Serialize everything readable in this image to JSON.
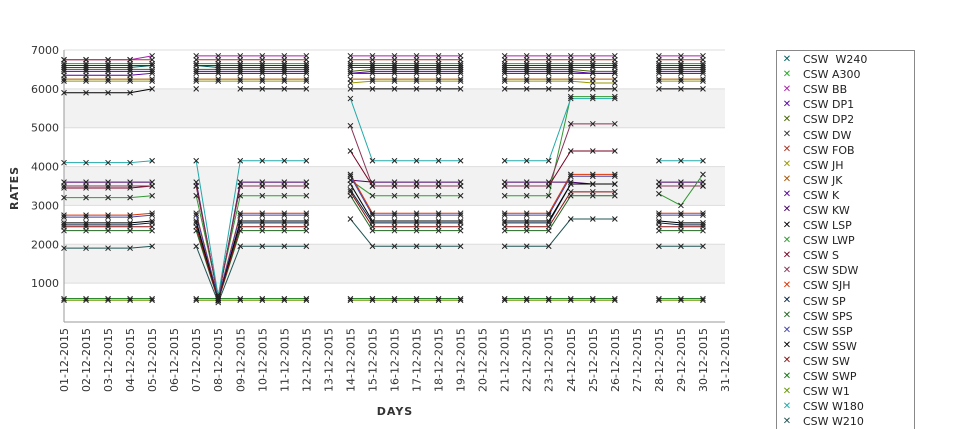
{
  "chart_data": {
    "type": "line",
    "xlabel": "DAYS",
    "ylabel": "RATES",
    "ylim": [
      0,
      7000
    ],
    "yticks": [
      1000,
      2000,
      3000,
      4000,
      5000,
      6000,
      7000
    ],
    "grid": true,
    "legend_position": "right",
    "x": [
      "01-12-2015",
      "02-12-2015",
      "03-12-2015",
      "04-12-2015",
      "05-12-2015",
      "06-12-2015",
      "07-12-2015",
      "08-12-2015",
      "09-12-2015",
      "10-12-2015",
      "11-12-2015",
      "12-12-2015",
      "13-12-2015",
      "14-12-2015",
      "15-12-2015",
      "16-12-2015",
      "17-12-2015",
      "18-12-2015",
      "19-12-2015",
      "20-12-2015",
      "21-12-2015",
      "22-12-2015",
      "23-12-2015",
      "24-12-2015",
      "25-12-2015",
      "26-12-2015",
      "27-12-2015",
      "28-12-2015",
      "29-12-2015",
      "30-12-2015",
      "31-12-2015"
    ],
    "series": [
      {
        "name": "CSW  W240",
        "color": "#006060",
        "values": [
          6550,
          6550,
          6550,
          6550,
          6600,
          null,
          6600,
          6550,
          6550,
          6550,
          6550,
          6550,
          null,
          6550,
          6550,
          6550,
          6550,
          6550,
          6550,
          null,
          6550,
          6550,
          6550,
          6550,
          6550,
          6550,
          null,
          6550,
          6550,
          6550,
          null
        ]
      },
      {
        "name": "CSW A300",
        "color": "#22aa22",
        "values": [
          6650,
          6650,
          6650,
          6650,
          6650,
          null,
          6650,
          6650,
          6650,
          6650,
          6650,
          6650,
          null,
          6650,
          6650,
          6650,
          6650,
          6650,
          6650,
          null,
          6650,
          6650,
          6650,
          6650,
          6650,
          6650,
          null,
          6650,
          6650,
          6650,
          null
        ]
      },
      {
        "name": "CSW BB",
        "color": "#aa22aa",
        "values": [
          6750,
          6750,
          6750,
          6750,
          6850,
          null,
          6850,
          6850,
          6850,
          6850,
          6850,
          6850,
          null,
          6850,
          6850,
          6850,
          6850,
          6850,
          6850,
          null,
          6850,
          6850,
          6850,
          6850,
          6850,
          6850,
          null,
          6850,
          6850,
          6850,
          null
        ]
      },
      {
        "name": "CSW DP1",
        "color": "#5500aa",
        "values": [
          6450,
          6450,
          6450,
          6450,
          6450,
          null,
          6450,
          6450,
          6450,
          6450,
          6450,
          6450,
          null,
          6400,
          6450,
          6450,
          6450,
          6450,
          6450,
          null,
          6450,
          6450,
          6450,
          6450,
          6400,
          6400,
          null,
          6450,
          6450,
          6450,
          null
        ]
      },
      {
        "name": "CSW DP2",
        "color": "#446600",
        "values": [
          6500,
          6500,
          6500,
          6500,
          6500,
          null,
          6500,
          6500,
          6500,
          6500,
          6500,
          6500,
          null,
          6450,
          6500,
          6500,
          6500,
          6500,
          6500,
          null,
          6500,
          6500,
          6500,
          6500,
          6450,
          6450,
          null,
          6500,
          6500,
          6500,
          null
        ]
      },
      {
        "name": "CSW DW",
        "color": "#333333",
        "values": [
          6600,
          6600,
          6600,
          6600,
          6600,
          null,
          6600,
          6600,
          6600,
          6600,
          6600,
          6600,
          null,
          6600,
          6600,
          6600,
          6600,
          6600,
          6600,
          null,
          6600,
          6600,
          6600,
          6600,
          6600,
          6600,
          null,
          6600,
          6600,
          6600,
          null
        ]
      },
      {
        "name": "CSW FOB",
        "color": "#aa3322",
        "values": [
          6750,
          6750,
          6750,
          6750,
          6750,
          null,
          6750,
          6750,
          6750,
          6750,
          6750,
          6750,
          null,
          6750,
          6750,
          6750,
          6750,
          6750,
          6750,
          null,
          6750,
          6750,
          6750,
          6750,
          6750,
          6750,
          null,
          6750,
          6750,
          6750,
          null
        ]
      },
      {
        "name": "CSW JH",
        "color": "#999900",
        "values": [
          6200,
          6200,
          6200,
          6200,
          6200,
          null,
          6200,
          6200,
          6200,
          6200,
          6200,
          6200,
          null,
          6150,
          6200,
          6200,
          6200,
          6200,
          6200,
          null,
          6200,
          6200,
          6200,
          6200,
          6150,
          6150,
          null,
          6200,
          6200,
          6200,
          null
        ]
      },
      {
        "name": "CSW JK",
        "color": "#aa5500",
        "values": [
          6250,
          6250,
          6250,
          6250,
          6250,
          null,
          6250,
          6250,
          6250,
          6250,
          6250,
          6250,
          null,
          6250,
          6250,
          6250,
          6250,
          6250,
          6250,
          null,
          6250,
          6250,
          6250,
          6250,
          6250,
          6250,
          null,
          6250,
          6250,
          6250,
          null
        ]
      },
      {
        "name": "CSW K",
        "color": "#550099",
        "values": [
          6350,
          6350,
          6350,
          6350,
          6400,
          null,
          6400,
          6400,
          6400,
          6400,
          6400,
          6400,
          null,
          6400,
          6400,
          6400,
          6400,
          6400,
          6400,
          null,
          6400,
          6400,
          6400,
          6400,
          6400,
          6400,
          null,
          6400,
          6400,
          6400,
          null
        ]
      },
      {
        "name": "CSW KW",
        "color": "#440066",
        "values": [
          3600,
          3600,
          3600,
          3600,
          3600,
          null,
          3600,
          600,
          3600,
          3600,
          3600,
          3600,
          null,
          3650,
          3600,
          3600,
          3600,
          3600,
          3600,
          null,
          3600,
          3600,
          3600,
          3600,
          3550,
          3550,
          null,
          3600,
          3600,
          3600,
          null
        ]
      },
      {
        "name": "CSW LSP",
        "color": "#000000",
        "values": [
          5900,
          5900,
          5900,
          5900,
          6000,
          null,
          6000,
          null,
          6000,
          6000,
          6000,
          6000,
          null,
          6000,
          6000,
          6000,
          6000,
          6000,
          6000,
          null,
          6000,
          6000,
          6000,
          6000,
          6000,
          6000,
          null,
          6000,
          6000,
          6000,
          null
        ]
      },
      {
        "name": "CSW LWP",
        "color": "#339933",
        "values": [
          3200,
          3200,
          3200,
          3200,
          3250,
          null,
          3250,
          700,
          3250,
          3250,
          3250,
          3250,
          null,
          3650,
          3250,
          3250,
          3250,
          3250,
          3250,
          null,
          3250,
          3250,
          3250,
          5800,
          5800,
          5800,
          null,
          3300,
          3000,
          3800,
          null
        ]
      },
      {
        "name": "CSW S",
        "color": "#770022",
        "values": [
          3450,
          3450,
          3450,
          3450,
          3500,
          null,
          3500,
          650,
          3500,
          3500,
          3500,
          3500,
          null,
          4400,
          3500,
          3500,
          3500,
          3500,
          3500,
          null,
          3500,
          3500,
          3500,
          4400,
          4400,
          4400,
          null,
          3500,
          3500,
          3500,
          null
        ]
      },
      {
        "name": "CSW SDW",
        "color": "#883355",
        "values": [
          3500,
          3500,
          3500,
          3500,
          3500,
          null,
          3500,
          650,
          3500,
          3500,
          3500,
          3500,
          null,
          5050,
          3500,
          3500,
          3500,
          3500,
          3500,
          null,
          3500,
          3500,
          3500,
          5100,
          5100,
          5100,
          null,
          3500,
          3500,
          3500,
          null
        ]
      },
      {
        "name": "CSW SJH",
        "color": "#dd3300",
        "values": [
          2750,
          2750,
          2750,
          2750,
          2800,
          null,
          2800,
          600,
          2800,
          2800,
          2800,
          2800,
          null,
          3800,
          2800,
          2800,
          2800,
          2800,
          2800,
          null,
          2800,
          2800,
          2800,
          3800,
          3800,
          3800,
          null,
          2800,
          2800,
          2800,
          null
        ]
      },
      {
        "name": "CSW SP",
        "color": "#002244",
        "values": [
          2500,
          2500,
          2500,
          2500,
          2550,
          null,
          2550,
          550,
          2550,
          2550,
          2550,
          2550,
          null,
          3400,
          2550,
          2550,
          2550,
          2550,
          2550,
          null,
          2550,
          2550,
          2550,
          3550,
          3550,
          3550,
          null,
          2550,
          2500,
          2500,
          null
        ]
      },
      {
        "name": "CSW SPS",
        "color": "#226622",
        "values": [
          2350,
          2350,
          2350,
          2350,
          2350,
          null,
          2350,
          550,
          2350,
          2350,
          2350,
          2350,
          null,
          3250,
          2350,
          2350,
          2350,
          2350,
          2350,
          null,
          2350,
          2350,
          2350,
          3250,
          3250,
          3250,
          null,
          2350,
          2350,
          2350,
          null
        ]
      },
      {
        "name": "CSW SSP",
        "color": "#4444aa",
        "values": [
          2700,
          2700,
          2700,
          2700,
          2750,
          null,
          2750,
          600,
          2750,
          2750,
          2750,
          2750,
          null,
          3750,
          2750,
          2750,
          2750,
          2750,
          2750,
          null,
          2750,
          2750,
          2750,
          3750,
          3750,
          3750,
          null,
          2750,
          2750,
          2750,
          null
        ]
      },
      {
        "name": "CSW SSW",
        "color": "#000000",
        "values": [
          2550,
          2550,
          2550,
          2550,
          2600,
          null,
          2600,
          550,
          2600,
          2600,
          2600,
          2600,
          null,
          3550,
          2600,
          2600,
          2600,
          2600,
          2600,
          null,
          2600,
          2600,
          2600,
          3550,
          3550,
          3550,
          null,
          2600,
          2550,
          2550,
          null
        ]
      },
      {
        "name": "CSW SW",
        "color": "#881111",
        "values": [
          2450,
          2450,
          2450,
          2450,
          2450,
          null,
          2450,
          550,
          2450,
          2450,
          2450,
          2450,
          null,
          3350,
          2450,
          2450,
          2450,
          2450,
          2450,
          null,
          2450,
          2450,
          2450,
          3350,
          3350,
          3350,
          null,
          2450,
          2450,
          2450,
          null
        ]
      },
      {
        "name": "CSW SWP",
        "color": "#117711",
        "values": [
          600,
          600,
          600,
          600,
          600,
          null,
          600,
          600,
          600,
          600,
          600,
          600,
          null,
          600,
          600,
          600,
          600,
          600,
          600,
          null,
          600,
          600,
          600,
          600,
          600,
          600,
          null,
          600,
          600,
          600,
          null
        ]
      },
      {
        "name": "CSW W1",
        "color": "#669900",
        "values": [
          560,
          560,
          560,
          560,
          560,
          null,
          560,
          560,
          560,
          560,
          560,
          560,
          null,
          560,
          560,
          560,
          560,
          560,
          560,
          null,
          560,
          560,
          560,
          560,
          560,
          560,
          null,
          560,
          560,
          560,
          null
        ]
      },
      {
        "name": "CSW W180",
        "color": "#22aaaa",
        "values": [
          4100,
          4100,
          4100,
          4100,
          4150,
          null,
          4150,
          650,
          4150,
          4150,
          4150,
          4150,
          null,
          5750,
          4150,
          4150,
          4150,
          4150,
          4150,
          null,
          4150,
          4150,
          4150,
          5750,
          5750,
          5750,
          null,
          4150,
          4150,
          4150,
          null
        ]
      },
      {
        "name": "CSW W210",
        "color": "#225555",
        "values": [
          1900,
          1900,
          1900,
          1900,
          1950,
          null,
          1950,
          500,
          1950,
          1950,
          1950,
          1950,
          null,
          2650,
          1950,
          1950,
          1950,
          1950,
          1950,
          null,
          1950,
          1950,
          1950,
          2650,
          2650,
          2650,
          null,
          1950,
          1950,
          1950,
          null
        ]
      }
    ]
  }
}
